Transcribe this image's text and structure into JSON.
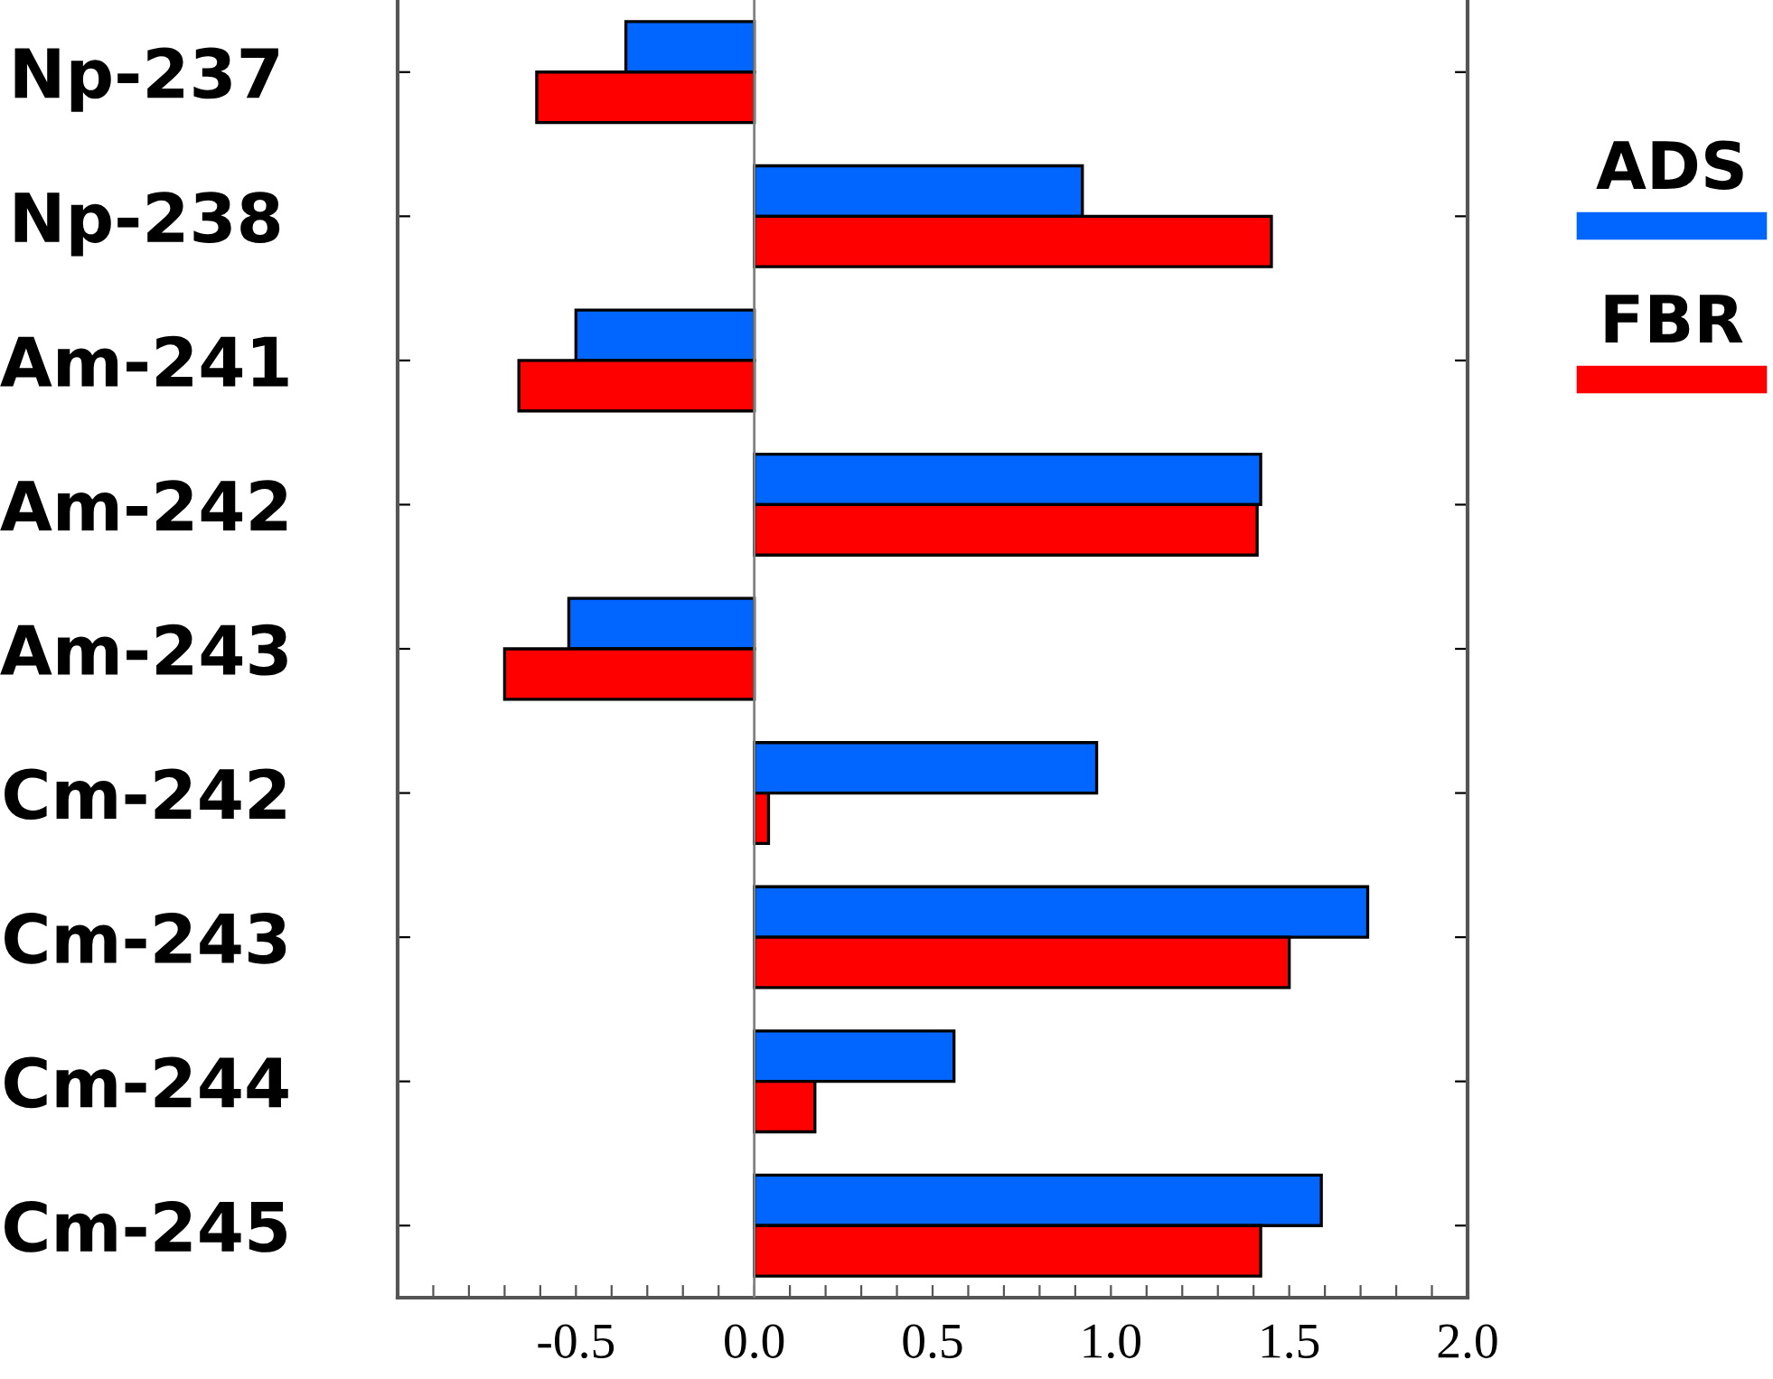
{
  "chart_data": {
    "type": "bar",
    "orientation": "horizontal",
    "categories": [
      "Np-237",
      "Np-238",
      "Am-241",
      "Am-242",
      "Am-243",
      "Cm-242",
      "Cm-243",
      "Cm-244",
      "Cm-245"
    ],
    "series": [
      {
        "name": "ADS",
        "color": "#0066ff",
        "values": [
          -0.36,
          0.92,
          -0.5,
          1.42,
          -0.52,
          0.96,
          1.72,
          0.56,
          1.59
        ]
      },
      {
        "name": "FBR",
        "color": "#ff0000",
        "values": [
          -0.61,
          1.45,
          -0.66,
          1.41,
          -0.7,
          0.04,
          1.5,
          0.17,
          1.42
        ]
      }
    ],
    "xlim": [
      -1.0,
      2.0
    ],
    "xticks": [
      {
        "value": -1.0,
        "label": null
      },
      {
        "value": -0.9,
        "label": null
      },
      {
        "value": -0.8,
        "label": null
      },
      {
        "value": -0.7,
        "label": null
      },
      {
        "value": -0.6,
        "label": null
      },
      {
        "value": -0.5,
        "label": "-0.5"
      },
      {
        "value": -0.4,
        "label": null
      },
      {
        "value": -0.3,
        "label": null
      },
      {
        "value": -0.2,
        "label": null
      },
      {
        "value": -0.1,
        "label": null
      },
      {
        "value": 0,
        "label": "0.0"
      },
      {
        "value": 0.1,
        "label": null
      },
      {
        "value": 0.2,
        "label": null
      },
      {
        "value": 0.3,
        "label": null
      },
      {
        "value": 0.4,
        "label": null
      },
      {
        "value": 0.5,
        "label": "0.5"
      },
      {
        "value": 0.6,
        "label": null
      },
      {
        "value": 0.7,
        "label": null
      },
      {
        "value": 0.8,
        "label": null
      },
      {
        "value": 0.9,
        "label": null
      },
      {
        "value": 1.0,
        "label": "1.0"
      },
      {
        "value": 1.1,
        "label": null
      },
      {
        "value": 1.2,
        "label": null
      },
      {
        "value": 1.3,
        "label": null
      },
      {
        "value": 1.4,
        "label": null
      },
      {
        "value": 1.5,
        "label": "1.5"
      },
      {
        "value": 1.6,
        "label": null
      },
      {
        "value": 1.7,
        "label": null
      },
      {
        "value": 1.8,
        "label": null
      },
      {
        "value": 1.9,
        "label": null
      },
      {
        "value": 2.0,
        "label": "2.0"
      }
    ],
    "ref_lines": [
      {
        "axis": "x",
        "value": 0,
        "color": "#808080"
      }
    ],
    "legend": "right",
    "grid": false
  }
}
